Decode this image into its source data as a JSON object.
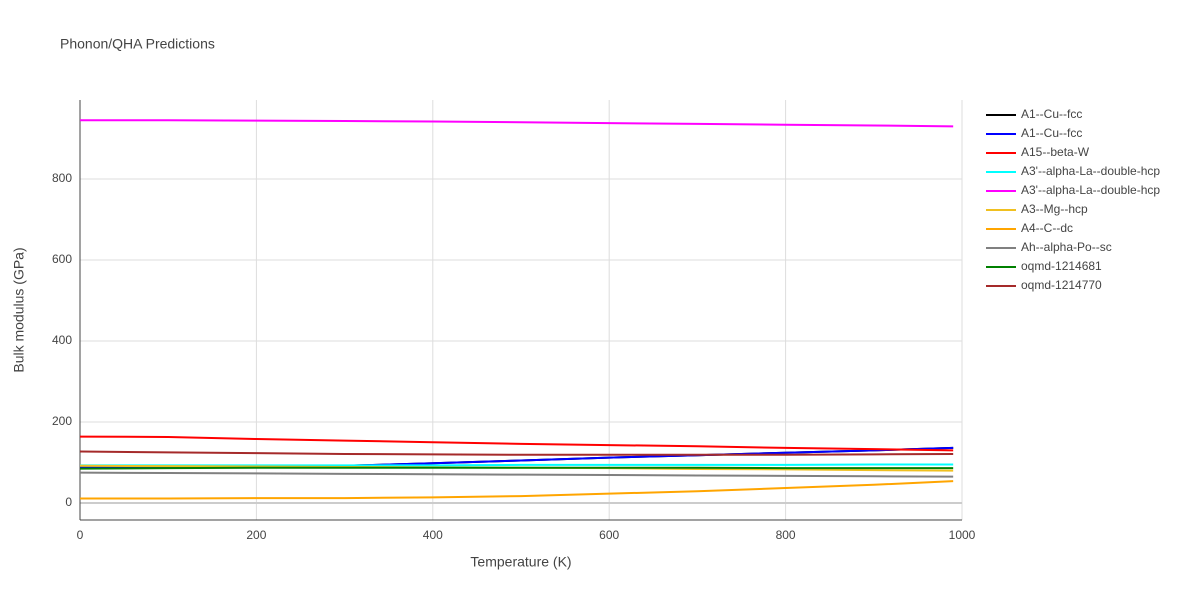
{
  "chart_data": {
    "type": "line",
    "title": "Phonon/QHA Predictions",
    "x_label": "Temperature (K)",
    "y_label": "Bulk modulus (GPa)",
    "x": [
      0,
      100,
      200,
      300,
      400,
      500,
      600,
      700,
      800,
      900,
      990
    ],
    "series": [
      {
        "name": "A1--Cu--fcc",
        "color": "#000000",
        "values": [
          87,
          87,
          89,
          92,
          98,
          105,
          112,
          118,
          124,
          130,
          136
        ]
      },
      {
        "name": "A1--Cu--fcc",
        "color": "#0000ff",
        "values": [
          87,
          87,
          89,
          92,
          98,
          105,
          112,
          118,
          124,
          130,
          136
        ]
      },
      {
        "name": "A15--beta-W",
        "color": "#ff0000",
        "values": [
          164,
          163,
          158,
          154,
          150,
          146,
          143,
          140,
          136,
          133,
          130
        ]
      },
      {
        "name": "A3'--alpha-La--double-hcp",
        "color": "#00ffff",
        "values": [
          93,
          93,
          93,
          93,
          93,
          94,
          94,
          94,
          94,
          95,
          95
        ]
      },
      {
        "name": "A3'--alpha-La--double-hcp",
        "color": "#ff00ff",
        "values": [
          945,
          945,
          944,
          943,
          942,
          940,
          938,
          936,
          934,
          932,
          930
        ]
      },
      {
        "name": "A3--Mg--hcp",
        "color": "#f0c020",
        "values": [
          92,
          91,
          90,
          89,
          88,
          87,
          86,
          84,
          83,
          81,
          80
        ]
      },
      {
        "name": "A4--C--dc",
        "color": "#ffa500",
        "values": [
          11,
          11,
          12,
          12,
          14,
          17,
          23,
          29,
          37,
          45,
          54
        ]
      },
      {
        "name": "Ah--alpha-Po--sc",
        "color": "#808080",
        "values": [
          75,
          74,
          73,
          72,
          71,
          70,
          69,
          68,
          67,
          66,
          65
        ]
      },
      {
        "name": "oqmd-1214681",
        "color": "#008000",
        "values": [
          85,
          86,
          87,
          87,
          87,
          87,
          87,
          87,
          86,
          86,
          86
        ]
      },
      {
        "name": "oqmd-1214770",
        "color": "#a52a2a",
        "values": [
          127,
          125,
          123,
          121,
          120,
          119,
          119,
          119,
          119,
          120,
          121
        ]
      }
    ],
    "xlim": [
      0,
      1000
    ],
    "xticks": [
      0,
      200,
      400,
      600,
      800,
      1000
    ],
    "ylim": [
      -42,
      995
    ],
    "yticks": [
      0,
      200,
      400,
      600,
      800
    ],
    "grid": true,
    "legend": "right"
  }
}
